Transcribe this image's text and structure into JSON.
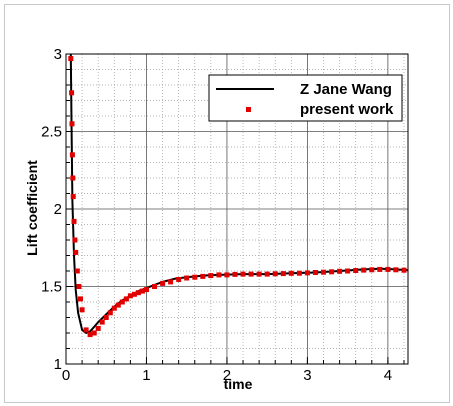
{
  "chart_data": {
    "type": "line",
    "xlabel": "time",
    "ylabel": "Lift coefficient",
    "xlim": [
      0,
      4.25
    ],
    "ylim": [
      1,
      3
    ],
    "x_ticks": [
      "0",
      "1",
      "2",
      "3",
      "4"
    ],
    "y_ticks": [
      "1",
      "1.5",
      "2",
      "2.5",
      "3"
    ],
    "grid": "major solid, minor dotted",
    "legend_position": "top-right",
    "series": [
      {
        "name": "Z Jane Wang",
        "style": "line",
        "color": "#000000",
        "x": [
          0.06,
          0.07,
          0.08,
          0.1,
          0.12,
          0.15,
          0.2,
          0.25,
          0.3,
          0.35,
          0.4,
          0.5,
          0.6,
          0.7,
          0.8,
          0.9,
          1.0,
          1.1,
          1.2,
          1.35,
          1.5,
          1.7,
          1.9,
          2.2,
          2.5,
          2.8,
          3.1,
          3.4,
          3.7,
          3.9,
          4.1,
          4.25
        ],
        "y": [
          3.0,
          2.5,
          2.05,
          1.7,
          1.48,
          1.33,
          1.22,
          1.2,
          1.21,
          1.24,
          1.27,
          1.32,
          1.37,
          1.41,
          1.44,
          1.47,
          1.49,
          1.51,
          1.53,
          1.55,
          1.56,
          1.57,
          1.575,
          1.58,
          1.58,
          1.585,
          1.59,
          1.6,
          1.61,
          1.615,
          1.61,
          1.605
        ]
      },
      {
        "name": "present work",
        "style": "markers",
        "color": "#e00000",
        "x": [
          0.06,
          0.07,
          0.075,
          0.08,
          0.085,
          0.09,
          0.1,
          0.11,
          0.12,
          0.14,
          0.16,
          0.18,
          0.2,
          0.25,
          0.3,
          0.35,
          0.4,
          0.45,
          0.5,
          0.55,
          0.6,
          0.65,
          0.7,
          0.75,
          0.8,
          0.85,
          0.9,
          0.95,
          1.0,
          1.1,
          1.2,
          1.3,
          1.4,
          1.5,
          1.6,
          1.7,
          1.8,
          1.9,
          2.0,
          2.1,
          2.2,
          2.3,
          2.4,
          2.5,
          2.6,
          2.7,
          2.8,
          2.9,
          3.0,
          3.1,
          3.2,
          3.3,
          3.4,
          3.5,
          3.6,
          3.7,
          3.8,
          3.9,
          4.0,
          4.1,
          4.2
        ],
        "y": [
          2.97,
          2.75,
          2.55,
          2.35,
          2.2,
          2.08,
          1.92,
          1.8,
          1.72,
          1.6,
          1.5,
          1.42,
          1.35,
          1.22,
          1.19,
          1.2,
          1.23,
          1.27,
          1.3,
          1.33,
          1.36,
          1.38,
          1.4,
          1.42,
          1.44,
          1.45,
          1.46,
          1.47,
          1.48,
          1.5,
          1.52,
          1.53,
          1.545,
          1.555,
          1.56,
          1.565,
          1.57,
          1.575,
          1.575,
          1.578,
          1.58,
          1.58,
          1.58,
          1.58,
          1.582,
          1.583,
          1.585,
          1.586,
          1.588,
          1.59,
          1.592,
          1.595,
          1.598,
          1.6,
          1.603,
          1.606,
          1.608,
          1.61,
          1.61,
          1.608,
          1.605
        ]
      }
    ]
  }
}
